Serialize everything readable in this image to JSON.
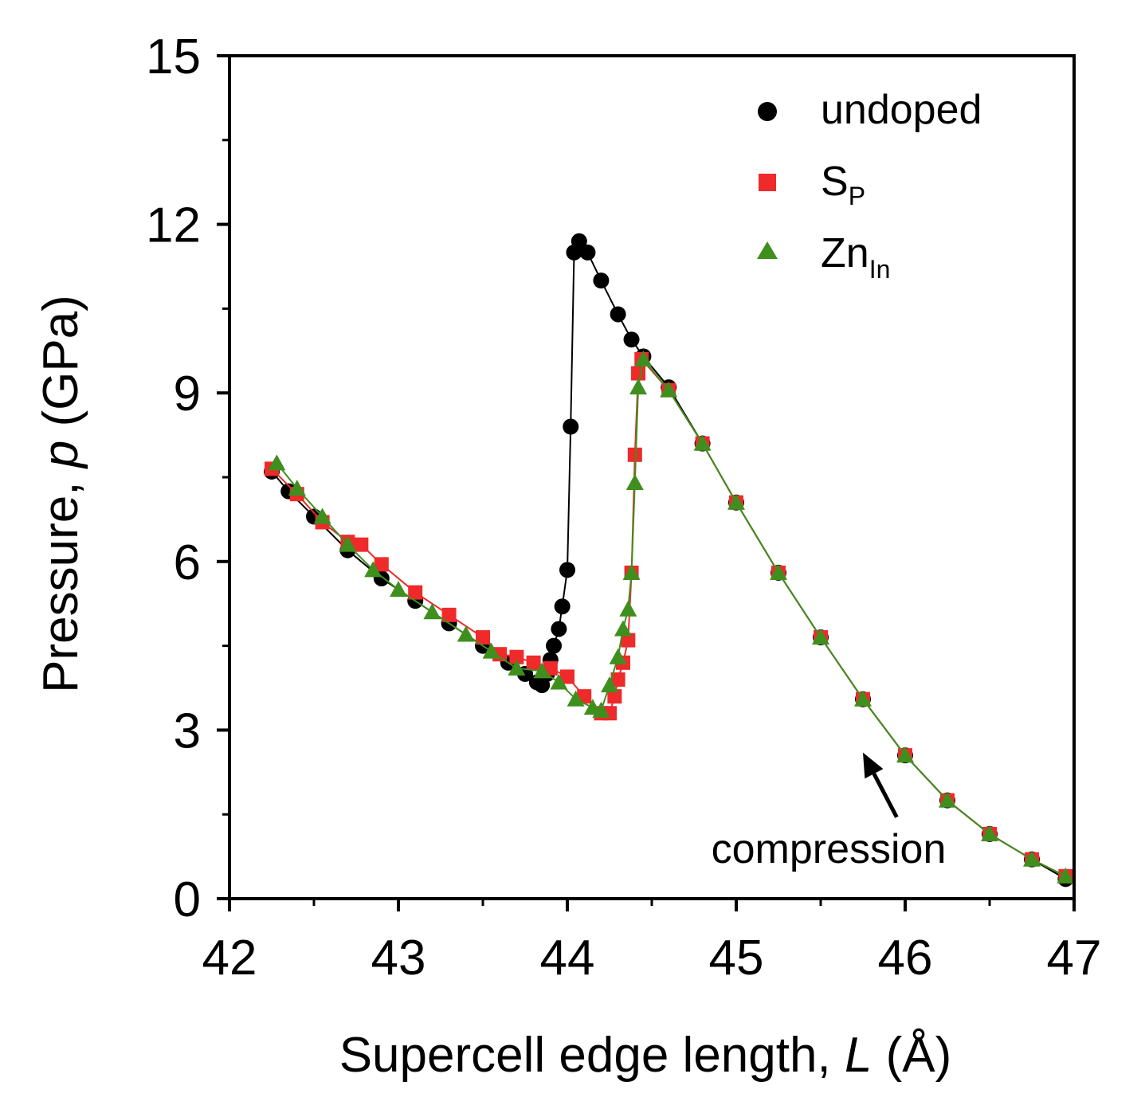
{
  "chart_data": {
    "type": "scatter",
    "title": "",
    "xlabel": {
      "prefix": "Supercell edge length, ",
      "var": "L",
      "suffix": " (Å)"
    },
    "ylabel": {
      "prefix": "Pressure, ",
      "var": "p",
      "suffix": " (GPa)"
    },
    "xlim": [
      42,
      47
    ],
    "ylim": [
      0,
      15
    ],
    "x_ticks": [
      42,
      43,
      44,
      45,
      46,
      47
    ],
    "y_ticks": [
      0,
      3,
      6,
      9,
      12,
      15
    ],
    "x_tick_labels": [
      "42",
      "43",
      "44",
      "45",
      "46",
      "47"
    ],
    "y_tick_labels": [
      "0",
      "3",
      "6",
      "9",
      "12",
      "15"
    ],
    "grid": false,
    "legend_position": "top-right",
    "series": [
      {
        "name": "undoped",
        "name_main": "undoped",
        "name_sub": "",
        "marker": "circle",
        "color": "#000000",
        "line_color": "#000000",
        "points": [
          [
            42.25,
            7.6
          ],
          [
            42.35,
            7.25
          ],
          [
            42.5,
            6.8
          ],
          [
            42.7,
            6.2
          ],
          [
            42.9,
            5.7
          ],
          [
            43.1,
            5.3
          ],
          [
            43.3,
            4.9
          ],
          [
            43.5,
            4.5
          ],
          [
            43.65,
            4.2
          ],
          [
            43.75,
            4.0
          ],
          [
            43.82,
            3.85
          ],
          [
            43.85,
            3.8
          ],
          [
            43.88,
            4.0
          ],
          [
            43.9,
            4.25
          ],
          [
            43.92,
            4.5
          ],
          [
            43.95,
            4.8
          ],
          [
            43.97,
            5.2
          ],
          [
            44.0,
            5.85
          ],
          [
            44.02,
            8.4
          ],
          [
            44.04,
            11.5
          ],
          [
            44.07,
            11.7
          ],
          [
            44.12,
            11.5
          ],
          [
            44.2,
            11.0
          ],
          [
            44.3,
            10.4
          ],
          [
            44.38,
            9.95
          ],
          [
            44.45,
            9.65
          ],
          [
            44.6,
            9.1
          ],
          [
            44.8,
            8.1
          ],
          [
            45.0,
            7.05
          ],
          [
            45.25,
            5.8
          ],
          [
            45.5,
            4.65
          ],
          [
            45.75,
            3.55
          ],
          [
            46.0,
            2.55
          ],
          [
            46.25,
            1.75
          ],
          [
            46.5,
            1.15
          ],
          [
            46.75,
            0.7
          ],
          [
            46.95,
            0.35
          ]
        ]
      },
      {
        "name": "SP",
        "name_main": "S",
        "name_sub": "P",
        "marker": "square",
        "color": "#ee2a2a",
        "line_color": "#ee2a2a",
        "points": [
          [
            42.25,
            7.65
          ],
          [
            42.4,
            7.2
          ],
          [
            42.55,
            6.7
          ],
          [
            42.7,
            6.35
          ],
          [
            42.78,
            6.3
          ],
          [
            42.9,
            5.95
          ],
          [
            43.1,
            5.45
          ],
          [
            43.3,
            5.05
          ],
          [
            43.5,
            4.65
          ],
          [
            43.6,
            4.35
          ],
          [
            43.7,
            4.3
          ],
          [
            43.8,
            4.2
          ],
          [
            43.9,
            4.1
          ],
          [
            44.0,
            3.95
          ],
          [
            44.1,
            3.6
          ],
          [
            44.2,
            3.3
          ],
          [
            44.25,
            3.3
          ],
          [
            44.28,
            3.6
          ],
          [
            44.3,
            3.9
          ],
          [
            44.33,
            4.2
          ],
          [
            44.36,
            4.6
          ],
          [
            44.38,
            5.8
          ],
          [
            44.4,
            7.9
          ],
          [
            44.42,
            9.35
          ],
          [
            44.44,
            9.6
          ],
          [
            44.6,
            9.05
          ],
          [
            44.8,
            8.1
          ],
          [
            45.0,
            7.05
          ],
          [
            45.25,
            5.8
          ],
          [
            45.5,
            4.65
          ],
          [
            45.75,
            3.55
          ],
          [
            46.0,
            2.55
          ],
          [
            46.25,
            1.75
          ],
          [
            46.5,
            1.15
          ],
          [
            46.75,
            0.7
          ],
          [
            46.95,
            0.4
          ]
        ]
      },
      {
        "name": "ZnIn",
        "name_main": "Zn",
        "name_sub": "In",
        "marker": "triangle",
        "color": "#3f8f1f",
        "line_color": "#3f8f1f",
        "points": [
          [
            42.28,
            7.75
          ],
          [
            42.4,
            7.3
          ],
          [
            42.55,
            6.8
          ],
          [
            42.7,
            6.3
          ],
          [
            42.85,
            5.85
          ],
          [
            43.0,
            5.5
          ],
          [
            43.2,
            5.1
          ],
          [
            43.4,
            4.7
          ],
          [
            43.55,
            4.4
          ],
          [
            43.7,
            4.1
          ],
          [
            43.85,
            4.05
          ],
          [
            43.95,
            3.85
          ],
          [
            44.05,
            3.55
          ],
          [
            44.15,
            3.4
          ],
          [
            44.2,
            3.35
          ],
          [
            44.25,
            3.8
          ],
          [
            44.3,
            4.3
          ],
          [
            44.33,
            4.8
          ],
          [
            44.36,
            5.15
          ],
          [
            44.38,
            5.8
          ],
          [
            44.4,
            7.4
          ],
          [
            44.42,
            9.1
          ],
          [
            44.45,
            9.6
          ],
          [
            44.6,
            9.05
          ],
          [
            44.8,
            8.1
          ],
          [
            45.0,
            7.05
          ],
          [
            45.25,
            5.8
          ],
          [
            45.5,
            4.65
          ],
          [
            45.75,
            3.55
          ],
          [
            46.0,
            2.55
          ],
          [
            46.25,
            1.75
          ],
          [
            46.5,
            1.15
          ],
          [
            46.75,
            0.7
          ],
          [
            46.95,
            0.4
          ]
        ]
      }
    ],
    "annotation": {
      "text": "compression",
      "arrow_from": [
        45.95,
        1.45
      ],
      "arrow_to": [
        45.75,
        2.6
      ]
    }
  }
}
